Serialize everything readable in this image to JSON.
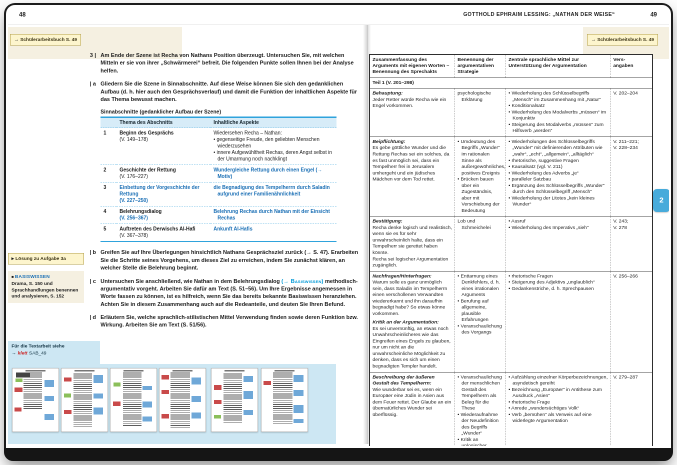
{
  "header": {
    "left_page_number": "48",
    "title": "GOTTHOLD EPHRAIM LESSING: „NATHAN DER WEISE“",
    "right_page_number": "49"
  },
  "badges": {
    "arrow": "→",
    "left": "Schülerarbeitsbuch S. 49",
    "right": "Schülerarbeitsbuch S. 49"
  },
  "colors": {
    "accent_blue": "#2fa3dc",
    "answer_blue": "#1a6fb5",
    "link_cyan": "#0099d6",
    "footer_blue": "#cde7f3",
    "badge_yellow": "#fdf5cd",
    "tab_blue": "#47abdb"
  },
  "left_page": {
    "tasks": [
      {
        "marker": "3 |",
        "segments": [
          {
            "text": "Am Ende der Szene ist Recha von Nathans Position überzeugt. Untersuchen Sie, mit welchen Mitteln er sie von ihrer „Schwärmerei“ befreit. Die folgenden Punkte sollen Ihnen bei der Analyse helfen."
          }
        ]
      },
      {
        "marker": "| a",
        "segments": [
          {
            "text": "Gliedern Sie die Szene in Sinnabschnitte. Auf diese Weise können Sie sich den gedanklichen Aufbau (d. h. hier auch den Gesprächsverlauf) und damit die Funktion der inhaltlichen Aspekte für das Thema bewusst machen."
          }
        ],
        "table_after": true
      },
      {
        "marker": "| b",
        "segments": [
          {
            "text": "Greifen Sie auf Ihre Überlegungen hinsichtlich Nathans Gesprächsziel zurück (→ S. 47). Erarbeiten Sie die Schritte seines Vorgehens, um dieses Ziel zu erreichen, indem Sie zunächst klären, an welcher Stelle die Belehrung beginnt."
          }
        ]
      },
      {
        "marker": "| c",
        "segments": [
          {
            "text": "Untersuchen Sie anschließend, wie Nathan in dem Belehrungsdialog "
          },
          {
            "text": "(→ Basiswissen)",
            "style": "link"
          },
          {
            "text": " methodisch-argumentativ vorgeht. Arbeiten Sie dafür am Text (S. 51–56). Um Ihre Ergebnisse angemessen in Worte fassen zu können, ist es hilfreich, wenn Sie das bereits bekannte Basiswissen heranziehen. Achten Sie in diesem Zusammenhang auch auf die Redeanteile, und deuten Sie Ihren Befund."
          }
        ]
      },
      {
        "marker": "| d",
        "segments": [
          {
            "text": "Erläutern Sie, welche sprachlich-stilistischen Mittel Verwendung finden sowie deren Funktion bzw. Wirkung. Arbeiten Sie am Text (S. 51/56)."
          }
        ]
      }
    ],
    "table": {
      "title": "Sinnabschnitte (gedanklicher Aufbau der Szene)",
      "columns": [
        "Thema des Abschnitts",
        "Inhaltliche Aspekte"
      ],
      "rows": [
        {
          "num": "1",
          "theme": "Beginn des Gesprächs",
          "verse": "(V. 149–178)",
          "theme_blue": false,
          "aspects": [
            "Wiedersehen Recha – Nathan:",
            "• gegenseitige Freude, den geliebten Menschen wiederzusehen",
            "• innere Aufgewühltheit Rechas, deren Angst selbst in der Umarmung noch nachklingt"
          ],
          "aspects_blue": false
        },
        {
          "num": "2",
          "theme": "Geschichte der Rettung",
          "verse": "(V. 176–227)",
          "theme_blue": false,
          "aspects": [
            "Wundergleiche Rettung durch einen Engel (→ Motiv)"
          ],
          "aspects_blue": true
        },
        {
          "num": "3",
          "theme": "Einbettung der Vorgeschichte der Rettung",
          "verse": "(V. 227–250)",
          "theme_blue": true,
          "aspects": [
            "die Begnadigung des Tempelherrn durch Saladin aufgrund einer Familienähnlichkeit"
          ],
          "aspects_blue": true
        },
        {
          "num": "4",
          "theme": "Belehrungsdialog",
          "verse": "(V. 256–367)",
          "theme_blue": false,
          "verse_blue": true,
          "aspects": [
            "Belehrung Rechas durch Nathan mit der Einsicht Rechas"
          ],
          "aspects_blue": true
        },
        {
          "num": "5",
          "theme": "Auftreten des Derwischs Al-Hafi",
          "verse": "(V. 367–378)",
          "theme_blue": false,
          "aspects": [
            "Ankunft Al-Hafis"
          ],
          "aspects_blue": true
        }
      ]
    }
  },
  "left_sidebar": {
    "triangle_marker": "▸",
    "solution_note": "Lösung zu Aufgabe 3a",
    "square_marker": "■",
    "basiswissen_label": "BASISWISSEN",
    "basiswissen_text": "Drama, S. 150 und Sprachhandlungen benennen und analysieren, S. 152",
    "note_text": "Für die Textarbeit siehe",
    "note_arrow": "→",
    "note_logo": "klett",
    "note_file": "SAB_49",
    "thumbnail_count": 6
  },
  "right_page": {
    "tab_label": "2",
    "table": {
      "columns": [
        "Zusammenfassung des Arguments mit eigenen Worten – Benennung des Sprechakts",
        "Benennung der argumentativen Strategie",
        "Zentrale sprachliche Mittel zur Unterstützung der Argumentation",
        "Vers-\nangaben"
      ],
      "section": "Teil 1 (V. 201–298)",
      "rows": [
        {
          "summary": [
            {
              "lead": "Behauptung:",
              "text": "Jeder Retter würde Recha wie ein Engel vorkommen."
            }
          ],
          "strategy": [
            "psychologische Erklärung"
          ],
          "means": [
            "• Wiederholung des Schlüsselbegriffs „Mensch“ im Zusammenhang mit „Natur“",
            "• Konditionalsatz",
            "• Wiederholung des Modalverbs „müssen“ im Konjunktiv",
            "• Steigerung des Modalverbs „müssen“ zum Hilfsverb „werden“"
          ],
          "verses": "V. 202–204"
        },
        {
          "summary": [
            {
              "lead": "Beipflichtung:",
              "text": "Es gebe göttliche Wunder und die Rettung Rechas sei ein solches, da es fast unmöglich sei, dass ein Tempelherr frei in Jerusalem umhergeht und ein jüdisches Mädchen vor dem Tod rettet."
            }
          ],
          "strategy": [
            "• Umdeutung des Begriffs „Wunder“ im rationalen Sinne als außergewöhnliches, positives Ereignis",
            "• Brücken bauen über ein Zugeständnis, aber mit Verschiebung der Bedeutung"
          ],
          "means": [
            "• Wiederholungen des Schlüsselbegriffs „Wunder“ mit definierenden Attributen wie „wahr“, „echt“, „allgemein“, „alltäglich“",
            "• rhetorische, suggestive Fragen",
            "• Kausalsatz (vgl. V. 211)",
            "• Wiederholung des Adverbs „je“",
            "• paralleler Satzbau",
            "• Ergänzung des Schlüsselbegriffs „Wunder“ durch den Schlüsselbegriff „Mensch“",
            "• Wiederholung der Litotes „kein kleines Wunder“"
          ],
          "verses": "V. 211–221;\nV. 228–234"
        },
        {
          "summary": [
            {
              "lead": "Bestätigung:",
              "text": "Recha denke logisch und realistisch, wenn sie es für sehr unwahrscheinlich halte, dass ein Tempelherr sie gerettet haben könnte.\nRecha sei logischer Argumentation zugänglich."
            }
          ],
          "strategy": [
            "Lob und Schmeichelei"
          ],
          "means": [
            "• Ausruf",
            "• Wiederholung des Imperativs „sieh“"
          ],
          "verses": "V. 243;\nV. 278"
        },
        {
          "summary": [
            {
              "lead": "Nachfragen/Hinterfragen:",
              "text": "Warum solle es ganz unmöglich sein, dass Saladin im Tempelherrn einen verschollenen Verwandten wiedererkannt und ihn daraufhin begnadigt habe? So etwas könne vorkommen."
            },
            {
              "lead": "Kritik an der Argumentation:",
              "text": "Es sei unvernünftig, an etwas noch Unwahrscheinlicheres wie das Eingreifen eines Engels zu glauben, nur um nicht an die unwahrscheinliche Möglichkeit zu denken, dass es sich um einen begnadigten Templer handelt."
            }
          ],
          "strategy": [
            "• Enttarnung eines Denkfehlers, d. h. eines irrationalen Arguments",
            "• Berufung auf allgemeine, plausible Erfahrungen",
            "• Veranschaulichung des Vorgangs"
          ],
          "means": [
            "• rhetorische Fragen",
            "• Steigerung des Adjektivs „unglaublich“",
            "• Gedankenstriche, d. h. Sprechpausen"
          ],
          "verses": "V. 256–266"
        },
        {
          "summary": [
            {
              "lead": "Beschreibung der äußeren Gestalt des Tempelherrn:",
              "text": "Wie wunderbar sei es, wenn ein Europäer eine Jüdin in Asien aus dem Feuer rettet. Der Glaube an ein übernatürliches Wunder sei überflüssig."
            }
          ],
          "strategy": [
            "• Veranschaulichung der menschlichen Gestalt des Tempelherrn als Beleg für die These",
            "• Wiederaufnahme der Neudefinition des Begriffs „Wunder“",
            "• Kritik an unlogischer Schlussfolgerung"
          ],
          "means": [
            "• Aufzählung einzelner Körperbezeichnungen, asyndetisch gereiht",
            "• Bezeichnung „Europäer“ in Antithese zum Ausdruck „Asien“",
            "• rhetorische Frage",
            "• Anrede „wundersüchtiges Volk“",
            "• Verb „bemühen“ als Verweis auf eine widerlegte Argumentation"
          ],
          "verses": "V. 279–287"
        }
      ]
    }
  }
}
